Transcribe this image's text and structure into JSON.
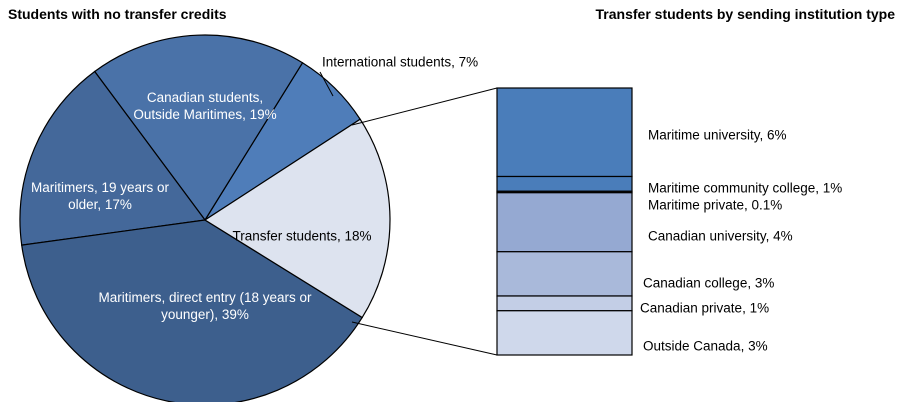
{
  "chart_data": [
    {
      "type": "pie",
      "title": "Students with no transfer credits",
      "labels": [
        "Transfer students, 18%",
        "Maritimers, direct entry (18 years or younger), 39%",
        "Maritimers, 19 years or older, 17%",
        "Canadian students, Outside Maritimes, 19%",
        "International students, 7%"
      ],
      "values": [
        18,
        39,
        17,
        19,
        7
      ],
      "colors": [
        "#dde3ef",
        "#3d5f8d",
        "#44689a",
        "#4a72a8",
        "#4f7db9"
      ]
    },
    {
      "type": "stacked_bar",
      "title": "Transfer students by sending institution type",
      "labels": [
        "Maritime university, 6%",
        "Maritime community college, 1%",
        "Maritime private, 0.1%",
        "Canadian university, 4%",
        "Canadian college, 3%",
        "Canadian private, 1%",
        "Outside Canada, 3%"
      ],
      "values": [
        6,
        1,
        0.1,
        4,
        3,
        1,
        3
      ],
      "colors": [
        "#4a7dba",
        "#4a7dba",
        "#1f1f1f",
        "#95a9d2",
        "#a9b9da",
        "#c3cee6",
        "#cfd8eb"
      ]
    }
  ]
}
